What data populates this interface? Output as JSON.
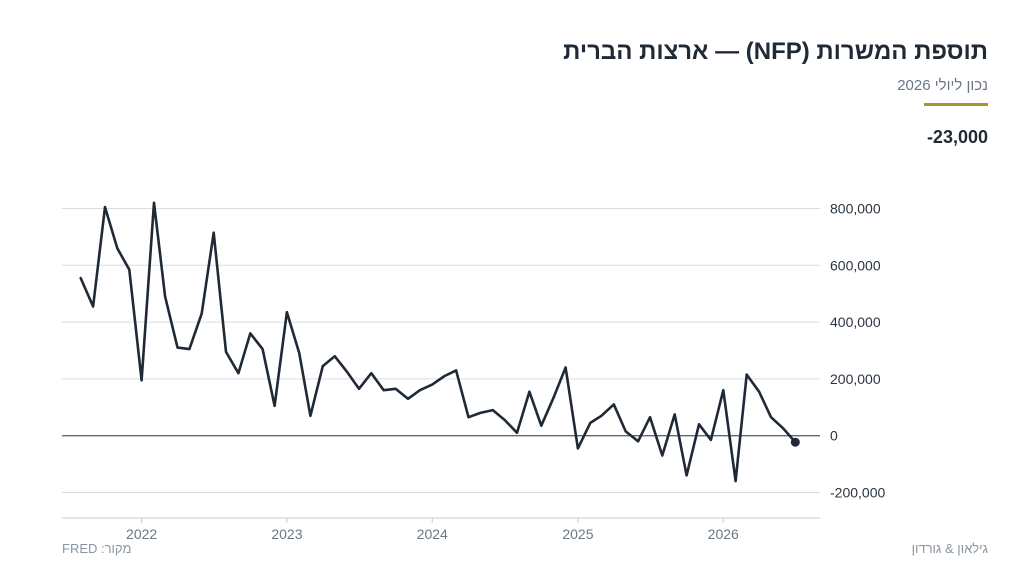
{
  "header": {
    "title": "תוספת המשרות (NFP) — ארצות הברית",
    "subtitle": "נכון ליולי 2026",
    "last_value": "-23,000"
  },
  "footer": {
    "source": "מקור: FRED",
    "brand": "גילאון & גורדון"
  },
  "colors": {
    "line": "#1f2a36",
    "accent": "#a8932f",
    "grid": "#d9dde2",
    "zero_line": "#5b6875"
  },
  "chart_data": {
    "type": "line",
    "title": "תוספת המשרות (NFP) — ארצות הברית",
    "xlabel": "",
    "ylabel": "",
    "ylim": [
      -290000,
      830000
    ],
    "xlim": [
      "2021-06-15",
      "2026-09-01"
    ],
    "yticks": [
      800000,
      600000,
      400000,
      200000,
      0,
      -200000
    ],
    "ytick_labels": [
      "800,000",
      "600,000",
      "400,000",
      "200,000",
      "0",
      "-200,000"
    ],
    "xticks": [
      "2022-01-01",
      "2023-01-01",
      "2024-01-01",
      "2025-01-01",
      "2026-01-01"
    ],
    "xtick_labels": [
      "2022",
      "2023",
      "2024",
      "2025",
      "2026"
    ],
    "grid": true,
    "series": [
      {
        "x": [
          "2021-08",
          "2021-09",
          "2021-10",
          "2021-11",
          "2021-12",
          "2022-01",
          "2022-02",
          "2022-03",
          "2022-04",
          "2022-05",
          "2022-06",
          "2022-07",
          "2022-08",
          "2022-09",
          "2022-10",
          "2022-11",
          "2022-12",
          "2023-01",
          "2023-02",
          "2023-03",
          "2023-04",
          "2023-05",
          "2023-06",
          "2023-07",
          "2023-08",
          "2023-09",
          "2023-10",
          "2023-11",
          "2023-12",
          "2024-01",
          "2024-02",
          "2024-03",
          "2024-04",
          "2024-05",
          "2024-06",
          "2024-07",
          "2024-08",
          "2024-09",
          "2024-10",
          "2024-11",
          "2024-12",
          "2025-01",
          "2025-02",
          "2025-03",
          "2025-04",
          "2025-05",
          "2025-06",
          "2025-07",
          "2025-08",
          "2025-09",
          "2025-10",
          "2025-11",
          "2025-12",
          "2026-01",
          "2026-02",
          "2026-03",
          "2026-04",
          "2026-05",
          "2026-06",
          "2026-07"
        ],
        "values": [
          555000,
          455000,
          805000,
          660000,
          585000,
          195000,
          820000,
          490000,
          310000,
          305000,
          430000,
          715000,
          295000,
          220000,
          360000,
          305000,
          105000,
          435000,
          290000,
          70000,
          245000,
          280000,
          225000,
          165000,
          220000,
          160000,
          165000,
          130000,
          160000,
          180000,
          210000,
          230000,
          65000,
          80000,
          90000,
          55000,
          10000,
          155000,
          35000,
          135000,
          240000,
          -45000,
          45000,
          70000,
          110000,
          15000,
          -20000,
          65000,
          -70000,
          75000,
          -140000,
          40000,
          -15000,
          160000,
          -160000,
          215000,
          155000,
          65000,
          25000,
          -23000
        ]
      }
    ]
  }
}
